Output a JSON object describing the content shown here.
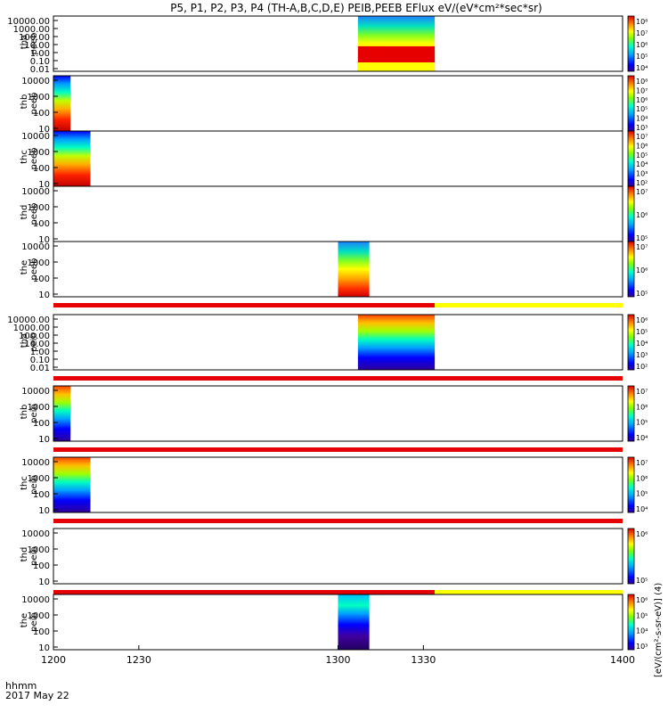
{
  "title": "P5, P1, P2, P3, P4 (TH-A,B,C,D,E) PEIB,PEEB EFlux eV/(eV*cm²*sec*sr)",
  "time_axis": {
    "label_line1": "hhmm",
    "label_line2": "2017 May 22",
    "ticks": [
      "1200",
      "1230",
      "1300",
      "1330",
      "1400"
    ]
  },
  "colorbar_units_label": "[eV/(cm²-s-sr-eV)]  (4)",
  "colors": {
    "data_red": "#e60000",
    "data_yellow": "#ffff00",
    "background": "#ffffff",
    "black": "#000000"
  },
  "chart_data": {
    "type": "heatmap",
    "xlim": [
      1200,
      1400
    ],
    "x_ticks": [
      1200,
      1230,
      1300,
      1330,
      1400
    ],
    "panels": [
      {
        "ylabel1": "tha",
        "ylabel2": "peeb",
        "yscale": "log",
        "ytick_labels": [
          "10000.00",
          "1000.00",
          "100.00",
          "10.00",
          "1.00",
          "0.10",
          "0.01"
        ],
        "cb_tick_labels": [
          "10⁸",
          "10⁷",
          "10⁶",
          "10⁵",
          "10⁴"
        ],
        "data_x": [
          1307,
          1334
        ],
        "bar_below": false
      },
      {
        "ylabel1": "thb",
        "ylabel2": "peeb",
        "yscale": "log",
        "ytick_labels": [
          "10000",
          "1000",
          "100",
          "10"
        ],
        "cb_tick_labels": [
          "10⁸",
          "10⁷",
          "10⁶",
          "10⁵",
          "10⁴",
          "10³"
        ],
        "data_x": [
          1200,
          1206
        ],
        "bar_below": false
      },
      {
        "ylabel1": "thc",
        "ylabel2": "peeb",
        "yscale": "log",
        "ytick_labels": [
          "10000",
          "1000",
          "100",
          "10"
        ],
        "cb_tick_labels": [
          "10⁷",
          "10⁶",
          "10⁵",
          "10⁴",
          "10³",
          "10²"
        ],
        "data_x": [
          1200,
          1213
        ],
        "bar_below": false
      },
      {
        "ylabel1": "thd",
        "ylabel2": "peeb",
        "yscale": "log",
        "ytick_labels": [
          "10000",
          "1000",
          "100",
          "10"
        ],
        "cb_tick_labels": [
          "10⁷",
          "10⁶",
          "10⁵"
        ],
        "data_x": null,
        "bar_below": false
      },
      {
        "ylabel1": "the",
        "ylabel2": "peeb",
        "yscale": "log",
        "ytick_labels": [
          "10000",
          "1000",
          "100",
          "10"
        ],
        "cb_tick_labels": [
          "10⁷",
          "10⁶",
          "10⁵"
        ],
        "data_x": [
          1300,
          1311
        ],
        "bar_below": true,
        "bar_red_x": [
          1200,
          1334
        ],
        "bar_yellow_x": [
          1334,
          1400
        ]
      },
      {
        "ylabel1": "tha",
        "ylabel2": "peib",
        "yscale": "log",
        "ytick_labels": [
          "10000.00",
          "1000.00",
          "100.00",
          "10.00",
          "1.00",
          "0.10",
          "0.01"
        ],
        "cb_tick_labels": [
          "10⁶",
          "10⁵",
          "10⁴",
          "10³",
          "10²"
        ],
        "data_x": [
          1307,
          1334
        ],
        "bar_below": true,
        "bar_red_x": [
          1200,
          1400
        ],
        "bar_yellow_x": null
      },
      {
        "ylabel1": "thb",
        "ylabel2": "peib",
        "yscale": "log",
        "ytick_labels": [
          "10000",
          "1000",
          "100",
          "10"
        ],
        "cb_tick_labels": [
          "10⁷",
          "10⁶",
          "10⁵",
          "10⁴"
        ],
        "data_x": [
          1200,
          1206
        ],
        "bar_below": true,
        "bar_red_x": [
          1200,
          1400
        ],
        "bar_yellow_x": null
      },
      {
        "ylabel1": "thc",
        "ylabel2": "peib",
        "yscale": "log",
        "ytick_labels": [
          "10000",
          "1000",
          "100",
          "10"
        ],
        "cb_tick_labels": [
          "10⁷",
          "10⁶",
          "10⁵",
          "10⁴"
        ],
        "data_x": [
          1200,
          1213
        ],
        "bar_below": true,
        "bar_red_x": [
          1200,
          1400
        ],
        "bar_yellow_x": null
      },
      {
        "ylabel1": "thd",
        "ylabel2": "peib",
        "yscale": "log",
        "ytick_labels": [
          "10000",
          "1000",
          "100",
          "10"
        ],
        "cb_tick_labels": [
          "10⁶",
          "10⁵"
        ],
        "data_x": null,
        "bar_below": true,
        "bar_red_x": [
          1200,
          1334
        ],
        "bar_yellow_x": [
          1334,
          1400
        ]
      },
      {
        "ylabel1": "the",
        "ylabel2": "peib",
        "yscale": "log",
        "ytick_labels": [
          "10000",
          "1000",
          "100",
          "10"
        ],
        "cb_tick_labels": [
          "10⁶",
          "10⁵",
          "10⁴",
          "10³"
        ],
        "data_x": [
          1300,
          1311
        ],
        "bar_below": false
      }
    ]
  }
}
